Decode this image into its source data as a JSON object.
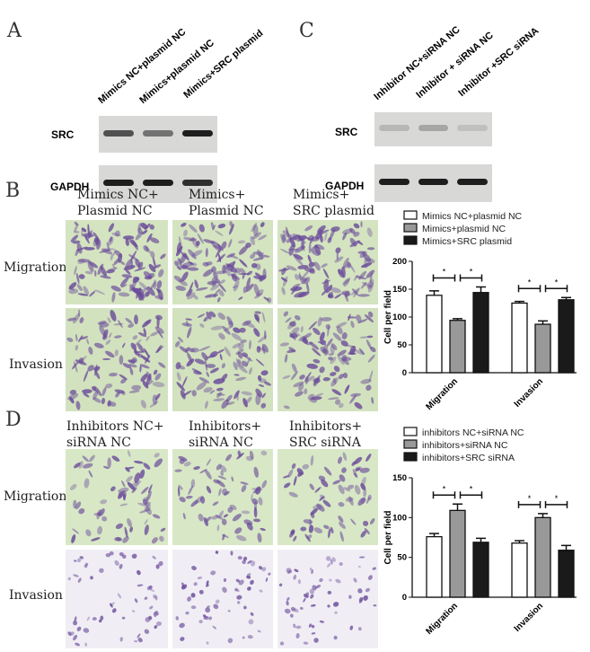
{
  "panels": {
    "A": "A",
    "B": "B",
    "C": "C",
    "D": "D"
  },
  "blot_A": {
    "lanes": [
      "Mimics NC+plasmid NC",
      "Mimics+plasmid NC",
      "Mimics+SRC plasmid"
    ],
    "rows": [
      "SRC",
      "GAPDH"
    ],
    "src_intensity": [
      0.7,
      0.5,
      1.0
    ],
    "gapdh_intensity": [
      1,
      1,
      0.9
    ]
  },
  "blot_C": {
    "lanes": [
      "Inhibitor NC+siRNA NC",
      "Inhibitor + siRNA NC",
      "Inhibitor +SRC siRNA"
    ],
    "rows": [
      "SRC",
      "GAPDH"
    ],
    "src_intensity": [
      0.1,
      0.2,
      0.05
    ],
    "gapdh_intensity": [
      1,
      1,
      1
    ]
  },
  "micro_B": {
    "columns": [
      "Mimics NC+\nPlasmid NC",
      "Mimics+\nPlasmid NC",
      "Mimics+\nSRC plasmid"
    ],
    "rows": [
      "Migration",
      "Invasion"
    ]
  },
  "micro_D": {
    "columns": [
      "Inhibitors NC+\nsiRNA NC",
      "Inhibitors+\nsiRNA NC",
      "Inhibitors+\nSRC siRNA"
    ],
    "rows": [
      "Migration",
      "Invasion"
    ]
  },
  "colors": {
    "white_bar": "#ffffff",
    "gray_bar": "#999999",
    "black_bar": "#1a1a1a",
    "micro_bg": "#d7e6c4",
    "stain": "#6a4a9a"
  },
  "chart_data": [
    {
      "type": "bar",
      "categories": [
        "Migration",
        "Invasion"
      ],
      "ylabel": "Cell per field",
      "ylim": [
        0,
        200
      ],
      "yticks": [
        0,
        50,
        100,
        150,
        200
      ],
      "legend": "top",
      "series": [
        {
          "name": "Mimics NC+plasmid NC",
          "values": [
            139,
            125
          ],
          "errors": [
            8,
            3
          ]
        },
        {
          "name": "Mimics+plasmid NC",
          "values": [
            94,
            87
          ],
          "errors": [
            3,
            6
          ]
        },
        {
          "name": "Mimics+SRC plasmid",
          "values": [
            144,
            131
          ],
          "errors": [
            10,
            4
          ]
        }
      ],
      "significance": "*"
    },
    {
      "type": "bar",
      "categories": [
        "Migration",
        "Invasion"
      ],
      "ylabel": "Cell per field",
      "ylim": [
        0,
        150
      ],
      "yticks": [
        0,
        50,
        100,
        150
      ],
      "legend": "top",
      "series": [
        {
          "name": "inhibitors NC+siRNA NC",
          "values": [
            76,
            68
          ],
          "errors": [
            4,
            3
          ]
        },
        {
          "name": "inhibitors+siRNA NC",
          "values": [
            109,
            100
          ],
          "errors": [
            8,
            5
          ]
        },
        {
          "name": "inhibitors+SRC siRNA",
          "values": [
            69,
            59
          ],
          "errors": [
            5,
            6
          ]
        }
      ],
      "significance": "*"
    }
  ]
}
